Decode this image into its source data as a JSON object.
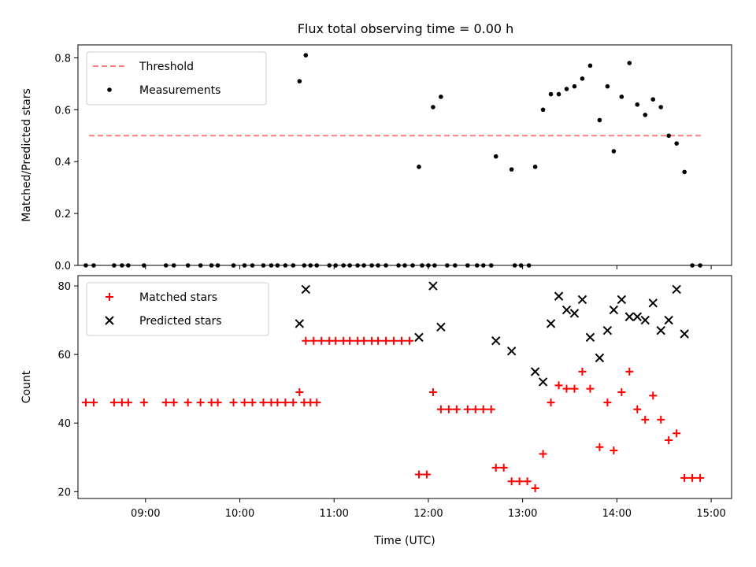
{
  "figure": {
    "title": "Flux total observing time = 0.00 h"
  },
  "colors": {
    "threshold": "#ff7f7f",
    "measurements": "#000000",
    "matched": "#ff0000",
    "predicted": "#000000"
  },
  "chart_data": [
    {
      "type": "scatter",
      "title": "Flux total observing time = 0.00 h",
      "xlabel": "",
      "ylabel": "Matched/Predicted stars",
      "xlim": [
        "08:17",
        "15:13"
      ],
      "ylim": [
        0,
        0.85
      ],
      "x_ticks": [
        "09:00",
        "10:00",
        "11:00",
        "12:00",
        "13:00",
        "14:00",
        "15:00"
      ],
      "y_ticks": [
        "0.0",
        "0.2",
        "0.4",
        "0.6",
        "0.8"
      ],
      "legend": {
        "position": "upper-left",
        "entries": [
          "Threshold",
          "Measurements"
        ]
      },
      "threshold": {
        "name": "Threshold",
        "y": 0.5,
        "x": [
          "08:24",
          "14:55"
        ],
        "style": "dashed"
      },
      "series": [
        {
          "name": "Measurements",
          "points": [
            [
              "08:22",
              0.0
            ],
            [
              "08:27",
              0.0
            ],
            [
              "08:40",
              0.0
            ],
            [
              "08:45",
              0.0
            ],
            [
              "08:49",
              0.0
            ],
            [
              "08:59",
              0.0
            ],
            [
              "09:13",
              0.0
            ],
            [
              "09:18",
              0.0
            ],
            [
              "09:27",
              0.0
            ],
            [
              "09:35",
              0.0
            ],
            [
              "09:42",
              0.0
            ],
            [
              "09:46",
              0.0
            ],
            [
              "09:56",
              0.0
            ],
            [
              "10:03",
              0.0
            ],
            [
              "10:08",
              0.0
            ],
            [
              "10:15",
              0.0
            ],
            [
              "10:20",
              0.0
            ],
            [
              "10:24",
              0.0
            ],
            [
              "10:29",
              0.0
            ],
            [
              "10:34",
              0.0
            ],
            [
              "10:41",
              0.0
            ],
            [
              "10:45",
              0.0
            ],
            [
              "10:49",
              0.0
            ],
            [
              "10:38",
              0.71
            ],
            [
              "10:42",
              0.81
            ],
            [
              "10:57",
              0.0
            ],
            [
              "11:01",
              0.0
            ],
            [
              "11:06",
              0.0
            ],
            [
              "11:10",
              0.0
            ],
            [
              "11:15",
              0.0
            ],
            [
              "11:19",
              0.0
            ],
            [
              "11:24",
              0.0
            ],
            [
              "11:28",
              0.0
            ],
            [
              "11:33",
              0.0
            ],
            [
              "11:41",
              0.0
            ],
            [
              "11:45",
              0.0
            ],
            [
              "11:50",
              0.0
            ],
            [
              "11:56",
              0.0
            ],
            [
              "12:00",
              0.0
            ],
            [
              "12:04",
              0.0
            ],
            [
              "12:12",
              0.0
            ],
            [
              "12:17",
              0.0
            ],
            [
              "12:25",
              0.0
            ],
            [
              "12:31",
              0.0
            ],
            [
              "12:35",
              0.0
            ],
            [
              "12:40",
              0.0
            ],
            [
              "12:55",
              0.0
            ],
            [
              "12:59",
              0.0
            ],
            [
              "13:04",
              0.0
            ],
            [
              "11:54",
              0.38
            ],
            [
              "12:03",
              0.61
            ],
            [
              "12:08",
              0.65
            ],
            [
              "12:43",
              0.42
            ],
            [
              "12:53",
              0.37
            ],
            [
              "13:08",
              0.38
            ],
            [
              "13:13",
              0.6
            ],
            [
              "13:18",
              0.66
            ],
            [
              "13:23",
              0.66
            ],
            [
              "13:28",
              0.68
            ],
            [
              "13:33",
              0.69
            ],
            [
              "13:38",
              0.72
            ],
            [
              "13:43",
              0.77
            ],
            [
              "13:49",
              0.56
            ],
            [
              "13:54",
              0.69
            ],
            [
              "13:58",
              0.44
            ],
            [
              "14:03",
              0.65
            ],
            [
              "14:08",
              0.78
            ],
            [
              "14:13",
              0.62
            ],
            [
              "14:18",
              0.58
            ],
            [
              "14:23",
              0.64
            ],
            [
              "14:28",
              0.61
            ],
            [
              "14:33",
              0.5
            ],
            [
              "14:38",
              0.47
            ],
            [
              "14:43",
              0.36
            ],
            [
              "14:48",
              0.0
            ],
            [
              "14:53",
              0.0
            ]
          ]
        }
      ]
    },
    {
      "type": "scatter",
      "title": "",
      "xlabel": "Time (UTC)",
      "ylabel": "Count",
      "xlim": [
        "08:17",
        "15:13"
      ],
      "ylim": [
        18,
        83
      ],
      "x_ticks": [
        "09:00",
        "10:00",
        "11:00",
        "12:00",
        "13:00",
        "14:00",
        "15:00"
      ],
      "y_ticks": [
        "20",
        "40",
        "60",
        "80"
      ],
      "legend": {
        "position": "upper-left",
        "entries": [
          "Matched stars",
          "Predicted stars"
        ]
      },
      "series": [
        {
          "name": "Matched stars",
          "marker": "plus",
          "points": [
            [
              "08:22",
              46
            ],
            [
              "08:27",
              46
            ],
            [
              "08:40",
              46
            ],
            [
              "08:45",
              46
            ],
            [
              "08:49",
              46
            ],
            [
              "08:59",
              46
            ],
            [
              "09:13",
              46
            ],
            [
              "09:18",
              46
            ],
            [
              "09:27",
              46
            ],
            [
              "09:35",
              46
            ],
            [
              "09:42",
              46
            ],
            [
              "09:46",
              46
            ],
            [
              "09:56",
              46
            ],
            [
              "10:03",
              46
            ],
            [
              "10:08",
              46
            ],
            [
              "10:15",
              46
            ],
            [
              "10:20",
              46
            ],
            [
              "10:24",
              46
            ],
            [
              "10:29",
              46
            ],
            [
              "10:34",
              46
            ],
            [
              "10:41",
              46
            ],
            [
              "10:45",
              46
            ],
            [
              "10:49",
              46
            ],
            [
              "10:38",
              49
            ],
            [
              "10:42",
              64
            ],
            [
              "10:47",
              64
            ],
            [
              "10:52",
              64
            ],
            [
              "10:57",
              64
            ],
            [
              "11:01",
              64
            ],
            [
              "11:06",
              64
            ],
            [
              "11:10",
              64
            ],
            [
              "11:15",
              64
            ],
            [
              "11:19",
              64
            ],
            [
              "11:24",
              64
            ],
            [
              "11:28",
              64
            ],
            [
              "11:33",
              64
            ],
            [
              "11:38",
              64
            ],
            [
              "11:43",
              64
            ],
            [
              "11:48",
              64
            ],
            [
              "11:54",
              25
            ],
            [
              "11:59",
              25
            ],
            [
              "12:03",
              49
            ],
            [
              "12:08",
              44
            ],
            [
              "12:13",
              44
            ],
            [
              "12:18",
              44
            ],
            [
              "12:25",
              44
            ],
            [
              "12:30",
              44
            ],
            [
              "12:35",
              44
            ],
            [
              "12:40",
              44
            ],
            [
              "12:43",
              27
            ],
            [
              "12:48",
              27
            ],
            [
              "12:53",
              23
            ],
            [
              "12:58",
              23
            ],
            [
              "13:03",
              23
            ],
            [
              "13:08",
              21
            ],
            [
              "13:13",
              31
            ],
            [
              "13:18",
              46
            ],
            [
              "13:23",
              51
            ],
            [
              "13:28",
              50
            ],
            [
              "13:33",
              50
            ],
            [
              "13:38",
              55
            ],
            [
              "13:43",
              50
            ],
            [
              "13:49",
              33
            ],
            [
              "13:54",
              46
            ],
            [
              "13:58",
              32
            ],
            [
              "14:03",
              49
            ],
            [
              "14:08",
              55
            ],
            [
              "14:13",
              44
            ],
            [
              "14:18",
              41
            ],
            [
              "14:23",
              48
            ],
            [
              "14:28",
              41
            ],
            [
              "14:33",
              35
            ],
            [
              "14:38",
              37
            ],
            [
              "14:43",
              24
            ],
            [
              "14:48",
              24
            ],
            [
              "14:53",
              24
            ]
          ]
        },
        {
          "name": "Predicted stars",
          "marker": "x",
          "points": [
            [
              "10:38",
              69
            ],
            [
              "10:42",
              79
            ],
            [
              "11:54",
              65
            ],
            [
              "12:03",
              80
            ],
            [
              "12:08",
              68
            ],
            [
              "12:43",
              64
            ],
            [
              "12:53",
              61
            ],
            [
              "13:08",
              55
            ],
            [
              "13:13",
              52
            ],
            [
              "13:18",
              69
            ],
            [
              "13:23",
              77
            ],
            [
              "13:28",
              73
            ],
            [
              "13:33",
              72
            ],
            [
              "13:38",
              76
            ],
            [
              "13:43",
              65
            ],
            [
              "13:49",
              59
            ],
            [
              "13:54",
              67
            ],
            [
              "13:58",
              73
            ],
            [
              "14:03",
              76
            ],
            [
              "14:08",
              71
            ],
            [
              "14:13",
              71
            ],
            [
              "14:18",
              70
            ],
            [
              "14:23",
              75
            ],
            [
              "14:28",
              67
            ],
            [
              "14:33",
              70
            ],
            [
              "14:38",
              79
            ],
            [
              "14:43",
              66
            ]
          ]
        }
      ]
    }
  ]
}
